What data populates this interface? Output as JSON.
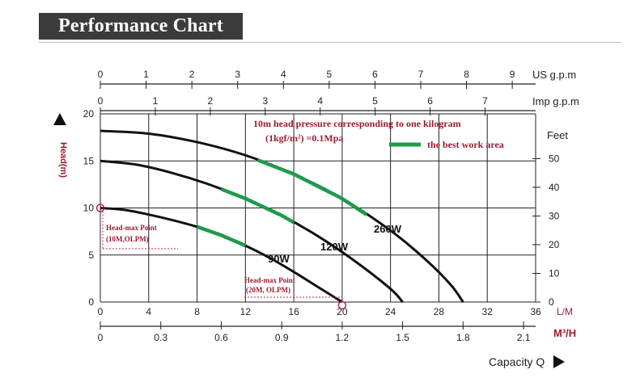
{
  "page": {
    "title": "Performance Chart"
  },
  "chart_data": {
    "type": "line",
    "title": "",
    "annotation_lines": [
      "10m head pressure corresponding to one kilogram",
      "(1kgf/m²) =0.1Mpa"
    ],
    "legend": {
      "label": "the best work area",
      "color": "#1f9a4b",
      "position": "top-right"
    },
    "ylabel": "Head(m)",
    "ylim": [
      0,
      20
    ],
    "yticks": [
      "0",
      "5",
      "10",
      "15",
      "20"
    ],
    "y2label": "Feet",
    "y2lim": [
      0,
      65.6
    ],
    "y2ticks": [
      "0",
      "10",
      "20",
      "30",
      "40",
      "50"
    ],
    "xlabel": "Capacity Q",
    "xlim": [
      0,
      36
    ],
    "x_axes": {
      "lpm": {
        "unit": "L/M",
        "ticks": [
          "0",
          "4",
          "8",
          "12",
          "16",
          "20",
          "24",
          "28",
          "32",
          "36"
        ],
        "range": [
          0,
          36
        ]
      },
      "m3h": {
        "unit": "M³/H",
        "ticks": [
          "0",
          "0.3",
          "0.6",
          "0.9",
          "1.2",
          "1.5",
          "1.8",
          "2.1"
        ],
        "range": [
          0,
          2.16
        ]
      },
      "usgpm": {
        "unit": "US g.p.m",
        "ticks": [
          "0",
          "1",
          "2",
          "3",
          "4",
          "5",
          "6",
          "7",
          "8",
          "9"
        ],
        "range": [
          0,
          9.51
        ]
      },
      "impgpm": {
        "unit": "Imp g.p.m",
        "ticks": [
          "0",
          "1",
          "2",
          "3",
          "4",
          "5",
          "6",
          "7"
        ],
        "range": [
          0,
          7.92
        ]
      }
    },
    "series": [
      {
        "name": "90W",
        "x": [
          0,
          2,
          4,
          6,
          8,
          10,
          12,
          14,
          16,
          18,
          20
        ],
        "y": [
          10,
          9.8,
          9.3,
          8.7,
          8.0,
          7.1,
          6.0,
          4.7,
          3.2,
          1.6,
          0
        ],
        "best_area": [
          8,
          12
        ]
      },
      {
        "name": "120W",
        "x": [
          0,
          3,
          6,
          9,
          12,
          15,
          18,
          21,
          24,
          25
        ],
        "y": [
          15,
          14.6,
          13.7,
          12.5,
          11.0,
          9.2,
          7.0,
          4.4,
          1.4,
          0
        ],
        "best_area": [
          10,
          16
        ]
      },
      {
        "name": "260W",
        "x": [
          0,
          4,
          8,
          12,
          16,
          20,
          24,
          27,
          29,
          30
        ],
        "y": [
          18.2,
          17.9,
          17.0,
          15.6,
          13.6,
          11.0,
          7.6,
          4.4,
          1.8,
          0
        ],
        "best_area": [
          13,
          22
        ]
      }
    ],
    "annotations": [
      {
        "text": "Head-max Point",
        "sub": "(10M,OLPM)",
        "x": 0,
        "y": 10
      },
      {
        "text": "Head-max Point",
        "sub": "(20M, OLPM)",
        "x": 20,
        "y": 0
      }
    ],
    "grid": true
  }
}
